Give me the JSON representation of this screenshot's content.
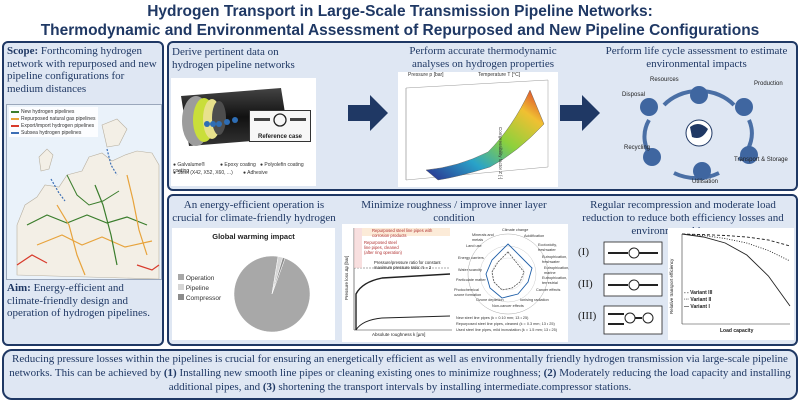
{
  "title": {
    "line1": "Hydrogen Transport in Large-Scale Transmission Pipeline Networks:",
    "line2": "Thermodynamic and Environmental Assessment of Repurposed and New Pipeline Configurations"
  },
  "scope": {
    "label": "Scope:",
    "text": "Forthcoming hydrogen network with repurposed and new pipeline configurations for medium distances",
    "legend": [
      {
        "label": "New hydrogen pipelines",
        "color": "#3a7d2c"
      },
      {
        "label": "Repurposed natural gas pipelines",
        "color": "#e7a33c"
      },
      {
        "label": "Export/import hydrogen pipelines",
        "color": "#d83a2b"
      },
      {
        "label": "Subsea hydrogen pipelines",
        "color": "#3c6fb5"
      }
    ]
  },
  "aim": {
    "label": "Aim:",
    "text": "Energy-efficient and climate-friendly design and operation of hydrogen pipelines."
  },
  "steps": {
    "derive": "Derive pertinent data on hydrogen pipeline networks",
    "thermo": "Perform accurate thermodynamic analyses on hydrogen properties",
    "lca": "Perform life cycle assessment to estimate environmental impacts"
  },
  "pipe": {
    "reference_case": "Reference case",
    "layers": [
      {
        "num": "1",
        "label": "Galvalume® coating"
      },
      {
        "num": "2",
        "label": "Epoxy coating"
      },
      {
        "num": "3",
        "label": "Polyolefin coating"
      },
      {
        "num": "4",
        "label": "Steel (X42, X52, X60, ...)"
      },
      {
        "num": "5",
        "label": "Adhesive"
      }
    ]
  },
  "thermo_plot": {
    "xlabel": "Pressure p [bar]",
    "ylabel": "Temperature T [°C]",
    "zlabel": "Compressibility factor Z [-]"
  },
  "lca_cycle": {
    "nodes": [
      "Resources",
      "Production",
      "Transport & Storage",
      "Utilisation",
      "Recycling",
      "Disposal"
    ]
  },
  "energy": {
    "header": "An energy-efficient operation is crucial for climate-friendly hydrogen transport",
    "pie_title": "Global warming impact",
    "legend": [
      {
        "label": "Operation",
        "color": "#a8a8a8"
      },
      {
        "label": "Pipeline",
        "color": "#d6d6d6"
      },
      {
        "label": "Compressor",
        "color": "#8c8c8c"
      }
    ],
    "chart_data": {
      "type": "pie",
      "title": "Global warming impact",
      "labels": [
        "Operation",
        "Pipeline",
        "Compressor"
      ],
      "values": [
        97,
        2,
        1
      ]
    }
  },
  "roughness": {
    "header": "Minimize roughness / improve inner layer condition",
    "annot1": "Repurposed steel line pipes with corrosion products",
    "annot2": "Repurposed steel line pipes, cleaned (after ring operation)",
    "annot3": "Pressure/pressure ratio for constant maximum pressure ratio: π = 2",
    "xlabel": "Absolute roughness k [µm]",
    "ylabel": "Pressure loss Δp [bar]",
    "radar_labels": [
      "Climate change",
      "Acidification",
      "Ecotoxicity, freshwater",
      "Eutrophication, freshwater",
      "Eutrophication, marine",
      "Eutrophication, terrestrial",
      "Cancer effects",
      "Ionising radiation",
      "Non-cancer effects",
      "Ozone depletion",
      "Photochemical ozone formation",
      "Particulate matter",
      "Water scarcity",
      "Energy carriers",
      "Land use",
      "Minerals and metals"
    ],
    "radar_legend": [
      "New steel line pipes (k = 0.10 mm; 13 • 25)",
      "Repurposed steel line pipes, cleaned (k = 0.3 mm; 13 • 25)",
      "Used steel line pipes, mild incrustation (k = 1.5 mm; 13 • 25)"
    ]
  },
  "recompression": {
    "header": "Regular recompression and moderate load reduction to reduce both efficiency losses and environmental impacts.",
    "variants": [
      "(I)",
      "(II)",
      "(III)"
    ],
    "xlabel": "Load capacity",
    "ylabel": "Relative transport efficiency",
    "legend": [
      "Variant III",
      "Variant II",
      "Variant I"
    ],
    "chart_data": {
      "type": "line",
      "x": [
        20,
        40,
        60,
        80,
        100
      ],
      "xlabel": "Load capacity",
      "ylabel": "Relative transport efficiency",
      "ylim": [
        70,
        100
      ],
      "series": [
        {
          "name": "Variant III",
          "values": [
            99.8,
            99.5,
            99,
            98,
            96
          ]
        },
        {
          "name": "Variant II",
          "values": [
            99.5,
            98.5,
            97,
            94.5,
            91
          ]
        },
        {
          "name": "Variant I",
          "values": [
            99,
            97,
            93,
            86,
            76
          ]
        }
      ]
    }
  },
  "conclusion": {
    "p1": "Reducing pressure losses within the pipelines is crucial for ensuring an energetically efficient as well as environmentally friendly hydrogen transmission via large-scale pipeline networks. This can be achieved by ",
    "n1": "(1)",
    "p2": " Installing new smooth line pipes or cleaning existing ones to minimize roughness; ",
    "n2": "(2)",
    "p3": " Moderately reducing the load capacity and installing additional pipes, and ",
    "n3": "(3)",
    "p4": " shortening the transport intervals by installing intermediate.compressor stations."
  }
}
